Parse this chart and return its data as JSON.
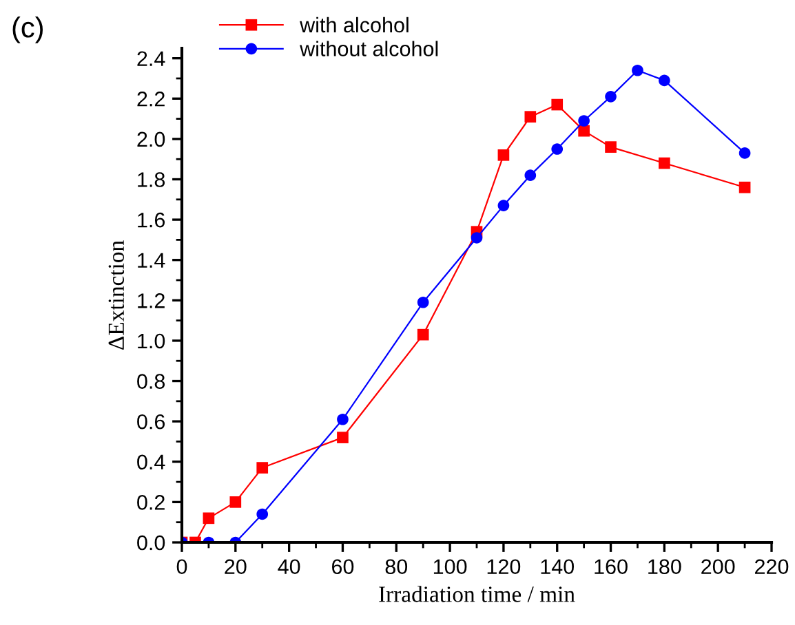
{
  "chart_data": {
    "type": "line",
    "xlabel": "Irradiation time / min",
    "ylabel": "ΔExtinction",
    "annotations": [
      "(c)"
    ],
    "xlim": [
      0,
      220
    ],
    "xticks": [
      0,
      20,
      40,
      60,
      80,
      100,
      120,
      140,
      160,
      180,
      200,
      220
    ],
    "ylim": [
      0,
      2.45
    ],
    "yticks": [
      {
        "value": 0,
        "label": "0.0"
      },
      0.2,
      0.4,
      0.6,
      0.8,
      {
        "value": 1,
        "label": "1.0"
      },
      1.2,
      1.4,
      1.6,
      1.8,
      {
        "value": 2,
        "label": "2.0"
      },
      2.2,
      2.4
    ],
    "grid": false,
    "legend": "top left",
    "series": [
      {
        "name": "with alcohol",
        "color": "#ff0000",
        "marker": "square",
        "x": [
          0,
          5,
          10,
          20,
          30,
          60,
          90,
          110,
          120,
          130,
          140,
          150,
          160,
          180,
          210
        ],
        "values": [
          0,
          0,
          0.12,
          0.2,
          0.37,
          0.52,
          1.03,
          1.54,
          1.92,
          2.11,
          2.17,
          2.04,
          1.96,
          1.88,
          1.76
        ]
      },
      {
        "name": "without alcohol",
        "color": "#0000ff",
        "marker": "circle",
        "x": [
          0,
          10,
          20,
          30,
          60,
          90,
          110,
          120,
          130,
          140,
          150,
          160,
          170,
          180,
          210
        ],
        "values": [
          0,
          0,
          0,
          0.14,
          0.61,
          1.19,
          1.51,
          1.67,
          1.82,
          1.95,
          2.09,
          2.21,
          2.34,
          2.29,
          1.93
        ]
      }
    ]
  }
}
